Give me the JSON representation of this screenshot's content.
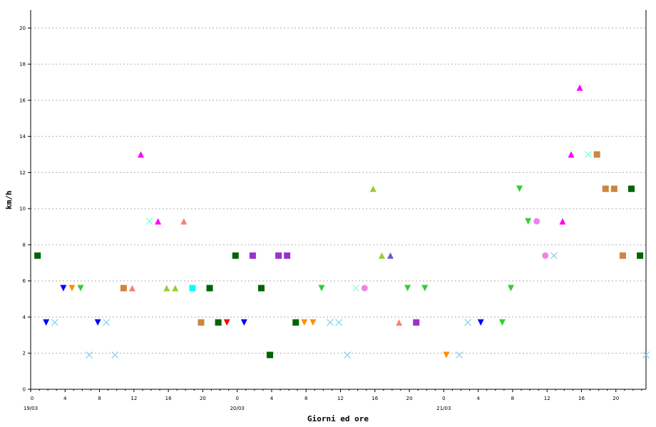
{
  "chart_data": {
    "type": "scatter",
    "title": "",
    "xlabel": "Giorni ed ore",
    "ylabel": "km/h",
    "xlim": [
      0,
      71.5
    ],
    "ylim": [
      0,
      21
    ],
    "y_ticks": [
      0,
      2,
      4,
      6,
      8,
      10,
      12,
      14,
      16,
      18,
      20
    ],
    "x_ticks": [
      {
        "x": 0,
        "label": "0"
      },
      {
        "x": 4,
        "label": "4"
      },
      {
        "x": 8,
        "label": "8"
      },
      {
        "x": 12,
        "label": "12"
      },
      {
        "x": 16,
        "label": "16"
      },
      {
        "x": 20,
        "label": "20"
      },
      {
        "x": 24,
        "label": "0"
      },
      {
        "x": 28,
        "label": "4"
      },
      {
        "x": 32,
        "label": "8"
      },
      {
        "x": 36,
        "label": "12"
      },
      {
        "x": 40,
        "label": "16"
      },
      {
        "x": 44,
        "label": "20"
      },
      {
        "x": 48,
        "label": "0"
      },
      {
        "x": 52,
        "label": "4"
      },
      {
        "x": 56,
        "label": "8"
      },
      {
        "x": 60,
        "label": "12"
      },
      {
        "x": 64,
        "label": "16"
      },
      {
        "x": 68,
        "label": "20"
      }
    ],
    "date_labels": [
      {
        "x": 0,
        "label": "19/03"
      },
      {
        "x": 24,
        "label": "20/03"
      },
      {
        "x": 48,
        "label": "21/03"
      }
    ],
    "grid": "horizontal-dotted",
    "points": [
      {
        "x": 0.8,
        "y": 7.4,
        "shape": "square",
        "color": "#006400"
      },
      {
        "x": 1.8,
        "y": 3.7,
        "shape": "tri-down",
        "color": "#0000ff"
      },
      {
        "x": 2.8,
        "y": 3.7,
        "shape": "x",
        "color": "#87ceeb"
      },
      {
        "x": 3.8,
        "y": 5.6,
        "shape": "tri-down",
        "color": "#0000ff"
      },
      {
        "x": 4.8,
        "y": 5.6,
        "shape": "tri-down",
        "color": "#ff8c00"
      },
      {
        "x": 5.8,
        "y": 5.6,
        "shape": "tri-down",
        "color": "#32cd32"
      },
      {
        "x": 6.8,
        "y": 1.9,
        "shape": "x",
        "color": "#87ceeb"
      },
      {
        "x": 7.8,
        "y": 3.7,
        "shape": "tri-down",
        "color": "#0000ff"
      },
      {
        "x": 8.8,
        "y": 3.7,
        "shape": "x",
        "color": "#87ceeb"
      },
      {
        "x": 9.8,
        "y": 1.9,
        "shape": "x",
        "color": "#87ceeb"
      },
      {
        "x": 10.8,
        "y": 5.6,
        "shape": "square",
        "color": "#cd853f"
      },
      {
        "x": 11.8,
        "y": 5.6,
        "shape": "tri-up",
        "color": "#fa8072"
      },
      {
        "x": 12.8,
        "y": 13.0,
        "shape": "tri-up",
        "color": "#ff00ff"
      },
      {
        "x": 13.8,
        "y": 9.3,
        "shape": "x",
        "color": "#7fffd4"
      },
      {
        "x": 14.8,
        "y": 9.3,
        "shape": "tri-up",
        "color": "#ff00ff"
      },
      {
        "x": 15.8,
        "y": 5.6,
        "shape": "tri-up",
        "color": "#9acd32"
      },
      {
        "x": 16.8,
        "y": 5.6,
        "shape": "tri-up",
        "color": "#9acd32"
      },
      {
        "x": 17.8,
        "y": 9.3,
        "shape": "tri-up",
        "color": "#fa8072"
      },
      {
        "x": 18.8,
        "y": 5.6,
        "shape": "square",
        "color": "#00ffff"
      },
      {
        "x": 19.8,
        "y": 3.7,
        "shape": "square",
        "color": "#cd853f"
      },
      {
        "x": 20.8,
        "y": 5.6,
        "shape": "square",
        "color": "#006400"
      },
      {
        "x": 21.8,
        "y": 3.7,
        "shape": "square",
        "color": "#006400"
      },
      {
        "x": 22.8,
        "y": 3.7,
        "shape": "tri-down",
        "color": "#ff0000"
      },
      {
        "x": 23.8,
        "y": 7.4,
        "shape": "square",
        "color": "#006400"
      },
      {
        "x": 24.8,
        "y": 3.7,
        "shape": "tri-down",
        "color": "#0000ff"
      },
      {
        "x": 25.8,
        "y": 7.4,
        "shape": "square",
        "color": "#9932cc"
      },
      {
        "x": 26.8,
        "y": 5.6,
        "shape": "square",
        "color": "#006400"
      },
      {
        "x": 27.8,
        "y": 1.9,
        "shape": "square",
        "color": "#006400"
      },
      {
        "x": 28.8,
        "y": 7.4,
        "shape": "square",
        "color": "#9932cc"
      },
      {
        "x": 29.8,
        "y": 7.4,
        "shape": "square",
        "color": "#9932cc"
      },
      {
        "x": 30.8,
        "y": 3.7,
        "shape": "square",
        "color": "#006400"
      },
      {
        "x": 31.8,
        "y": 3.7,
        "shape": "tri-down",
        "color": "#ff8c00"
      },
      {
        "x": 32.8,
        "y": 3.7,
        "shape": "tri-down",
        "color": "#ff8c00"
      },
      {
        "x": 33.8,
        "y": 5.6,
        "shape": "tri-down",
        "color": "#32cd32"
      },
      {
        "x": 34.8,
        "y": 3.7,
        "shape": "x",
        "color": "#87ceeb"
      },
      {
        "x": 35.8,
        "y": 3.7,
        "shape": "x",
        "color": "#87ceeb"
      },
      {
        "x": 36.8,
        "y": 1.9,
        "shape": "x",
        "color": "#87ceeb"
      },
      {
        "x": 37.8,
        "y": 5.6,
        "shape": "x",
        "color": "#7fffd4"
      },
      {
        "x": 38.8,
        "y": 5.6,
        "shape": "circle",
        "color": "#ee82ee"
      },
      {
        "x": 39.8,
        "y": 11.1,
        "shape": "tri-up",
        "color": "#9acd32"
      },
      {
        "x": 40.8,
        "y": 7.4,
        "shape": "tri-up",
        "color": "#9acd32"
      },
      {
        "x": 41.8,
        "y": 7.4,
        "shape": "tri-up",
        "color": "#6a5acd"
      },
      {
        "x": 42.8,
        "y": 3.7,
        "shape": "tri-up",
        "color": "#fa8072"
      },
      {
        "x": 43.8,
        "y": 5.6,
        "shape": "tri-down",
        "color": "#32cd32"
      },
      {
        "x": 44.8,
        "y": 3.7,
        "shape": "square",
        "color": "#9932cc"
      },
      {
        "x": 45.8,
        "y": 5.6,
        "shape": "tri-down",
        "color": "#32cd32"
      },
      {
        "x": 48.3,
        "y": 1.9,
        "shape": "tri-down",
        "color": "#ff8c00"
      },
      {
        "x": 49.8,
        "y": 1.9,
        "shape": "x",
        "color": "#87ceeb"
      },
      {
        "x": 50.8,
        "y": 3.7,
        "shape": "x",
        "color": "#87ceeb"
      },
      {
        "x": 52.3,
        "y": 3.7,
        "shape": "tri-down",
        "color": "#0000ff"
      },
      {
        "x": 54.8,
        "y": 3.7,
        "shape": "tri-down",
        "color": "#32cd32"
      },
      {
        "x": 55.8,
        "y": 5.6,
        "shape": "tri-down",
        "color": "#32cd32"
      },
      {
        "x": 56.8,
        "y": 11.1,
        "shape": "tri-down",
        "color": "#32cd32"
      },
      {
        "x": 57.8,
        "y": 9.3,
        "shape": "tri-down",
        "color": "#32cd32"
      },
      {
        "x": 58.8,
        "y": 9.3,
        "shape": "circle",
        "color": "#ee82ee"
      },
      {
        "x": 59.8,
        "y": 7.4,
        "shape": "circle",
        "color": "#ee82ee"
      },
      {
        "x": 60.8,
        "y": 7.4,
        "shape": "x",
        "color": "#87ceeb"
      },
      {
        "x": 61.8,
        "y": 9.3,
        "shape": "tri-up",
        "color": "#ff00ff"
      },
      {
        "x": 62.8,
        "y": 13.0,
        "shape": "tri-up",
        "color": "#ff00ff"
      },
      {
        "x": 63.8,
        "y": 16.7,
        "shape": "tri-up",
        "color": "#ff00ff"
      },
      {
        "x": 64.8,
        "y": 13.0,
        "shape": "x",
        "color": "#7fffd4"
      },
      {
        "x": 65.8,
        "y": 13.0,
        "shape": "square",
        "color": "#cd853f"
      },
      {
        "x": 66.8,
        "y": 11.1,
        "shape": "square",
        "color": "#cd853f"
      },
      {
        "x": 67.8,
        "y": 11.1,
        "shape": "square",
        "color": "#cd853f"
      },
      {
        "x": 68.8,
        "y": 7.4,
        "shape": "square",
        "color": "#cd853f"
      },
      {
        "x": 69.8,
        "y": 11.1,
        "shape": "square",
        "color": "#006400"
      },
      {
        "x": 70.8,
        "y": 7.4,
        "shape": "square",
        "color": "#006400"
      },
      {
        "x": 71.5,
        "y": 1.9,
        "shape": "x",
        "color": "#87ceeb"
      }
    ]
  }
}
